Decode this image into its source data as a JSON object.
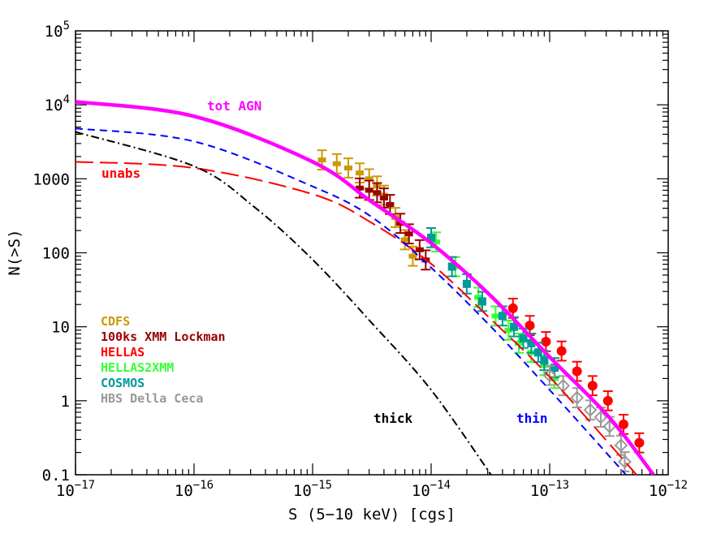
{
  "chart_data": {
    "type": "line",
    "title": "",
    "xlabel": "S (5−10 keV) [cgs]",
    "ylabel": "N(>S)",
    "xscale": "log",
    "yscale": "log",
    "xlim": [
      1e-17,
      1e-12
    ],
    "ylim": [
      0.1,
      100000
    ],
    "grid": false,
    "x_tick_labels": [
      {
        "base": "10",
        "exp": "−17",
        "value": 1e-17
      },
      {
        "base": "10",
        "exp": "−16",
        "value": 1e-16
      },
      {
        "base": "10",
        "exp": "−15",
        "value": 1e-15
      },
      {
        "base": "10",
        "exp": "−14",
        "value": 1e-14
      },
      {
        "base": "10",
        "exp": "−13",
        "value": 1e-13
      },
      {
        "base": "10",
        "exp": "−12",
        "value": 1e-12
      }
    ],
    "y_tick_labels": [
      {
        "text": "0.1",
        "value": 0.1
      },
      {
        "text": "1",
        "value": 1
      },
      {
        "text": "10",
        "value": 10
      },
      {
        "text": "100",
        "value": 100
      },
      {
        "text": "1000",
        "value": 1000
      },
      {
        "base": "10",
        "exp": "4",
        "value": 10000
      },
      {
        "base": "10",
        "exp": "5",
        "value": 100000
      }
    ],
    "curves": [
      {
        "name": "tot AGN",
        "color": "#ff00ff",
        "style": "solid",
        "x": [
          1e-17,
          1e-16,
          1e-15,
          3.2e-15,
          1e-14,
          3.2e-14,
          1e-13,
          3.2e-13,
          7.5e-13
        ],
        "y": [
          11000,
          7000,
          1700,
          480,
          135,
          26,
          3.9,
          0.59,
          0.1
        ]
      },
      {
        "name": "unabs",
        "color": "#ff0000",
        "style": "longdash",
        "x": [
          1e-17,
          1e-16,
          1e-15,
          3.2e-15,
          1e-14,
          3.2e-14,
          1e-13,
          5.4e-13
        ],
        "y": [
          1700,
          1400,
          620,
          250,
          71,
          12.6,
          2.1,
          0.1
        ]
      },
      {
        "name": "thin",
        "color": "#0000ff",
        "style": "dash",
        "x": [
          1e-17,
          1e-16,
          1e-15,
          3.2e-15,
          1e-14,
          3.2e-14,
          1e-13,
          4.4e-13
        ],
        "y": [
          4800,
          3200,
          790,
          300,
          63,
          10,
          1.4,
          0.1
        ]
      },
      {
        "name": "thick",
        "color": "#000000",
        "style": "dashdot",
        "x": [
          1e-17,
          1e-16,
          3.2e-16,
          1e-15,
          3.2e-15,
          1e-14,
          3.2e-14
        ],
        "y": [
          4300,
          1480,
          420,
          81,
          11,
          1.4,
          0.1
        ]
      }
    ],
    "series": [
      {
        "name": "CDFS",
        "color": "#cc9900",
        "marker": "errorbar",
        "x": [
          1.2e-15,
          1.6e-15,
          2e-15,
          2.5e-15,
          3e-15,
          3.5e-15,
          4e-15,
          5e-15,
          6e-15,
          7e-15
        ],
        "y": [
          1800,
          1600,
          1400,
          1200,
          1000,
          800,
          600,
          300,
          150,
          90
        ]
      },
      {
        "name": "100ks XMM Lockman",
        "color": "#990000",
        "marker": "errorbar",
        "x": [
          2.5e-15,
          3e-15,
          3.5e-15,
          4e-15,
          4.5e-15,
          5.5e-15,
          6.5e-15,
          8e-15,
          9e-15
        ],
        "y": [
          750,
          700,
          650,
          550,
          450,
          250,
          180,
          110,
          80
        ]
      },
      {
        "name": "HELLAS",
        "color": "#ff0000",
        "marker": "circle",
        "x": [
          4.9e-14,
          6.8e-14,
          9.3e-14,
          1.26e-13,
          1.7e-13,
          2.3e-13,
          3.1e-13,
          4.2e-13,
          5.7e-13
        ],
        "y": [
          17.8,
          10.4,
          6.3,
          4.7,
          2.5,
          1.6,
          1.0,
          0.48,
          0.27
        ]
      },
      {
        "name": "HELLAS2XMM",
        "color": "#33ff33",
        "marker": "errorbar",
        "x": [
          1.1e-14,
          1.6e-14,
          2.5e-14,
          3.5e-14,
          4.5e-14,
          5.5e-14,
          7e-14,
          9e-14,
          1.1e-13
        ],
        "y": [
          140,
          65,
          25,
          14,
          9,
          6,
          4.5,
          3,
          2
        ]
      },
      {
        "name": "COSMOS",
        "color": "#009999",
        "marker": "square",
        "x": [
          1e-14,
          1.5e-14,
          2e-14,
          2.7e-14,
          4e-14,
          5e-14,
          6e-14,
          7e-14,
          8e-14,
          9e-14,
          1.1e-13
        ],
        "y": [
          160,
          65,
          38,
          22,
          14,
          10,
          7,
          6,
          4.5,
          3.5,
          2.8
        ]
      },
      {
        "name": "HBS Della Ceca",
        "color": "#999999",
        "marker": "diamond",
        "x": [
          1e-13,
          1.3e-13,
          1.7e-13,
          2.2e-13,
          2.7e-13,
          3.2e-13,
          4e-13,
          4.3e-13
        ],
        "y": [
          2.2,
          1.6,
          1.1,
          0.75,
          0.6,
          0.45,
          0.25,
          0.15
        ]
      }
    ],
    "annotations": [
      {
        "text": "tot AGN",
        "color": "#ff00ff"
      },
      {
        "text": "unabs",
        "color": "#ff0000"
      },
      {
        "text": "thick",
        "color": "#000000"
      },
      {
        "text": "thin",
        "color": "#0000ff"
      }
    ],
    "legend_position": "lower-left"
  }
}
